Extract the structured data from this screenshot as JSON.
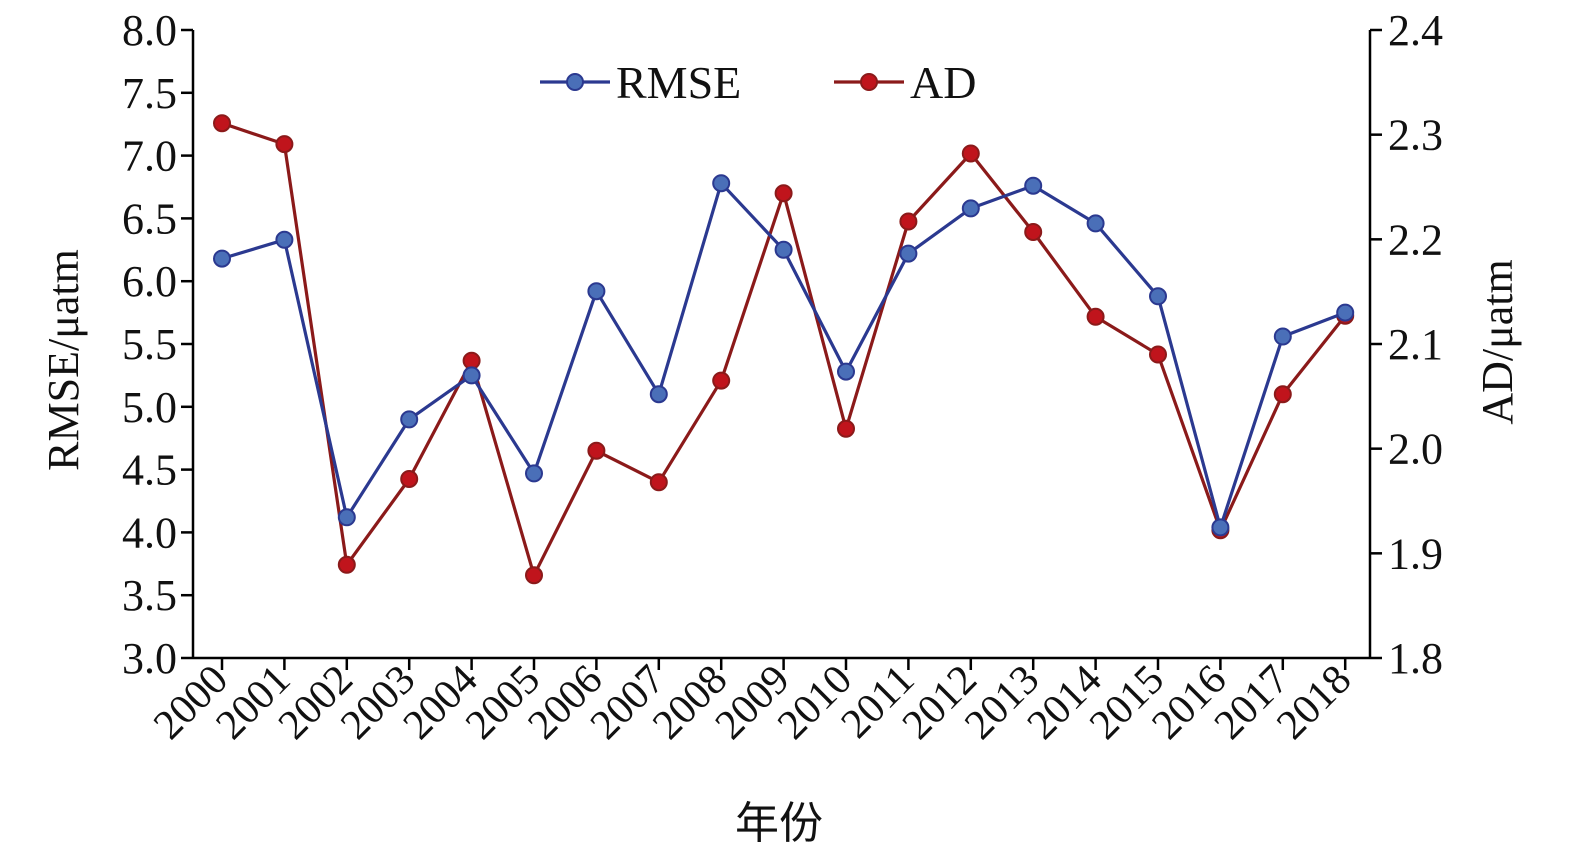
{
  "chart_data": {
    "type": "line",
    "categories": [
      "2000",
      "2001",
      "2002",
      "2003",
      "2004",
      "2005",
      "2006",
      "2007",
      "2008",
      "2009",
      "2010",
      "2011",
      "2012",
      "2013",
      "2014",
      "2015",
      "2016",
      "2017",
      "2018"
    ],
    "xlabel": "年份",
    "ylabel_left": "RMSE/μatm",
    "ylabel_right": "AD/μatm",
    "ylim_left": [
      3.0,
      8.0
    ],
    "ylim_right": [
      1.8,
      2.4
    ],
    "yticks_left": [
      "3.0",
      "3.5",
      "4.0",
      "4.5",
      "5.0",
      "5.5",
      "6.0",
      "6.5",
      "7.0",
      "7.5",
      "8.0"
    ],
    "yticks_right": [
      "1.8",
      "1.9",
      "2.0",
      "2.1",
      "2.2",
      "2.3",
      "2.4"
    ],
    "grid": false,
    "legend_position": "top-center",
    "series": [
      {
        "name": "RMSE",
        "axis": "left",
        "color": "#2B3990",
        "marker_color": "#4A6FB8",
        "values": [
          6.18,
          6.33,
          4.12,
          4.9,
          5.25,
          4.47,
          5.92,
          5.1,
          6.78,
          6.25,
          5.28,
          6.22,
          6.58,
          6.76,
          6.46,
          5.88,
          4.04,
          5.56,
          5.75
        ]
      },
      {
        "name": "AD",
        "axis": "right",
        "color": "#8B1A1A",
        "marker_color": "#C0141C",
        "values": [
          2.311,
          2.291,
          1.889,
          1.971,
          2.084,
          1.879,
          1.998,
          1.968,
          2.065,
          2.244,
          2.019,
          2.217,
          2.282,
          2.207,
          2.126,
          2.09,
          1.922,
          2.052,
          2.127
        ]
      }
    ]
  }
}
